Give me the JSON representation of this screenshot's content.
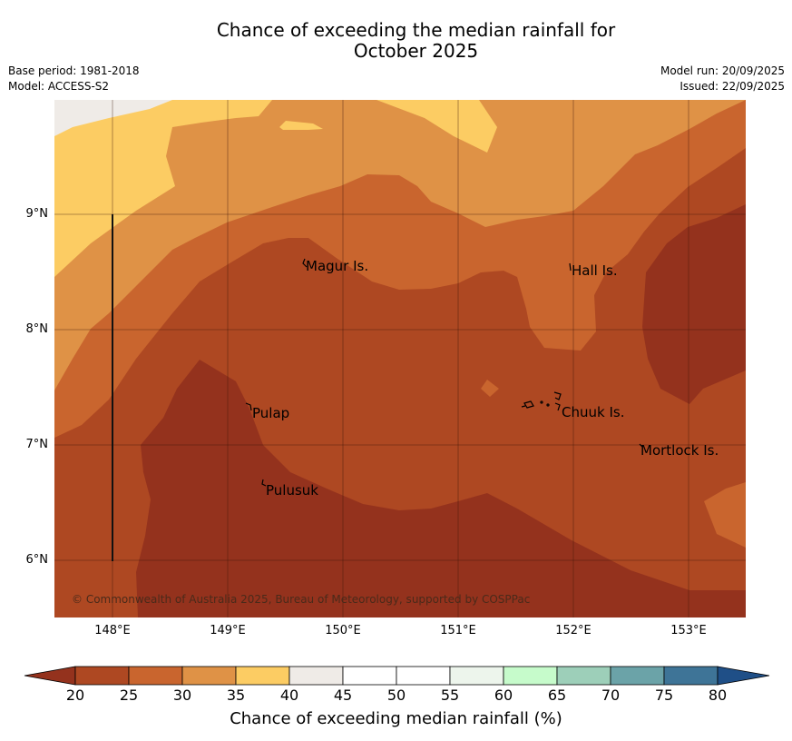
{
  "header": {
    "title_line1": "Chance of exceeding the median rainfall for",
    "title_line2": "October 2025",
    "base_period": "Base period: 1981-2018",
    "model": "Model: ACCESS-S2",
    "model_run": "Model run: 20/09/2025",
    "issued": "Issued: 22/09/2025"
  },
  "map": {
    "y_ticks": [
      "9°N",
      "8°N",
      "7°N",
      "6°N"
    ],
    "x_ticks": [
      "148°E",
      "149°E",
      "150°E",
      "151°E",
      "152°E",
      "153°E"
    ],
    "places": [
      "Magur Is.",
      "Hall Is.",
      "Pulap",
      "Chuuk Is.",
      "Mortlock Is.",
      "Pulusuk"
    ],
    "copyright": "© Commonwealth of Australia 2025, Bureau of Meteorology, supported by COSPPac",
    "colors": {
      "band_20_25": "#ae4822",
      "band_below_20": "#94321d",
      "band_25_30": "#c9652e",
      "band_30_35": "#df9246",
      "band_35_40": "#fccc63",
      "band_40_45": "#efebe7"
    }
  },
  "colorbar": {
    "ticks": [
      "20",
      "25",
      "30",
      "35",
      "40",
      "45",
      "50",
      "55",
      "60",
      "65",
      "70",
      "75",
      "80"
    ],
    "label": "Chance of exceeding median rainfall (%)",
    "colors": [
      "#ae4822",
      "#c9652e",
      "#df9246",
      "#fccc63",
      "#efebe7",
      "#ffffff",
      "#ffffff",
      "#edf5ec",
      "#c6fbcb",
      "#9dcfb9",
      "#6ba3a8",
      "#3e7497"
    ],
    "under_color": "#94321d",
    "over_color": "#1f4f87"
  }
}
